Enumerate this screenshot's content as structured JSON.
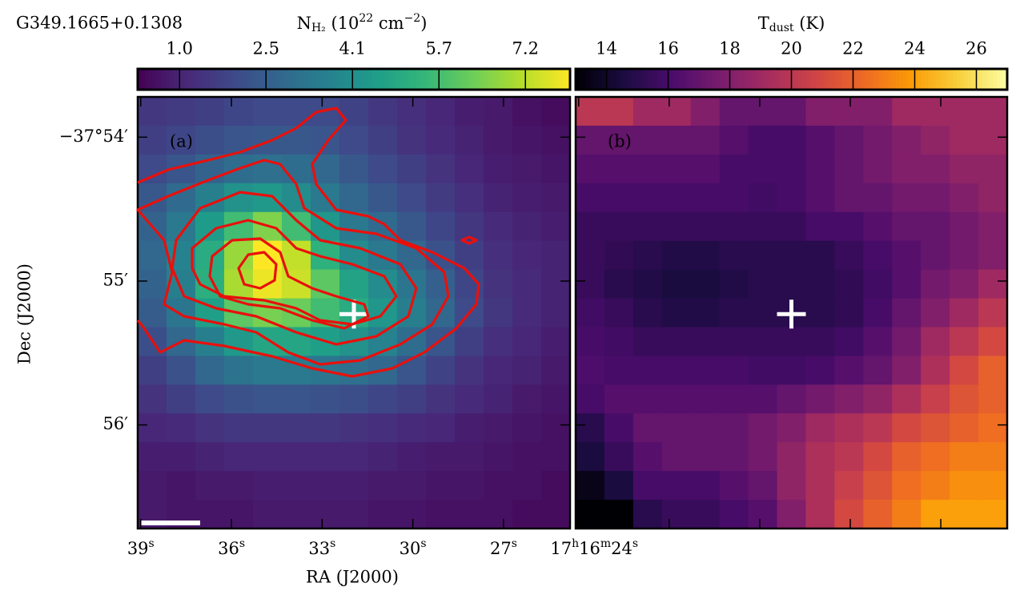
{
  "chart_data": [
    {
      "type": "heatmap",
      "title": "G349.1665+0.1308",
      "label": "(a)",
      "cmap": "viridis",
      "colorbar": {
        "label": [
          {
            "t": "N"
          },
          {
            "t": "H₂",
            "sub": true
          },
          {
            "t": " (10"
          },
          {
            "t": "22",
            "sup": true
          },
          {
            "t": " cm"
          },
          {
            "t": "−2",
            "sup": true
          },
          {
            "t": ")"
          }
        ],
        "clim": [
          0.25,
          8.0
        ],
        "ticks": [
          {
            "value": 1.0,
            "label": "1.0"
          },
          {
            "value": 2.55,
            "label": "2.5"
          },
          {
            "value": 4.1,
            "label": "4.1"
          },
          {
            "value": 5.65,
            "label": "5.7"
          },
          {
            "value": 7.2,
            "label": "7.2"
          }
        ]
      },
      "xlabel": "RA (J2000)",
      "ylabel": "Dec (J2000)",
      "xlim": [
        39.1,
        24.8
      ],
      "ylim": [
        53.72,
        56.72
      ],
      "xticks": [
        {
          "value": 39,
          "label": [
            {
              "t": "39"
            },
            {
              "t": "s",
              "sup": true
            }
          ]
        },
        {
          "value": 36,
          "label": [
            {
              "t": "36"
            },
            {
              "t": "s",
              "sup": true
            }
          ]
        },
        {
          "value": 33,
          "label": [
            {
              "t": "33"
            },
            {
              "t": "s",
              "sup": true
            }
          ]
        },
        {
          "value": 30,
          "label": [
            {
              "t": "30"
            },
            {
              "t": "s",
              "sup": true
            }
          ]
        },
        {
          "value": 27,
          "label": [
            {
              "t": "27"
            },
            {
              "t": "s",
              "sup": true
            }
          ]
        },
        {
          "value": 24,
          "label": [
            {
              "t": "17"
            },
            {
              "t": "h",
              "sup": true
            },
            {
              "t": "16"
            },
            {
              "t": "m",
              "sup": true
            },
            {
              "t": "24"
            },
            {
              "t": "s",
              "sup": true
            }
          ]
        }
      ],
      "yticks": [
        {
          "value": 54,
          "label": "−37°54′"
        },
        {
          "value": 55,
          "label": "55′"
        },
        {
          "value": 56,
          "label": "56′"
        }
      ],
      "cross": {
        "x": 31.95,
        "y": 55.23
      },
      "z": [
        [
          1.5,
          1.6,
          1.7,
          1.9,
          2.0,
          2.0,
          2.0,
          1.8,
          1.5,
          1.3,
          1.1,
          0.9,
          0.8,
          0.6,
          0.5
        ],
        [
          1.7,
          1.9,
          2.1,
          2.3,
          2.4,
          2.4,
          2.3,
          2.0,
          1.7,
          1.4,
          1.2,
          1.0,
          0.8,
          0.7,
          0.6
        ],
        [
          2.0,
          2.3,
          2.7,
          3.0,
          3.1,
          3.0,
          2.8,
          2.4,
          2.0,
          1.7,
          1.4,
          1.1,
          0.9,
          0.8,
          0.7
        ],
        [
          2.4,
          2.9,
          3.6,
          4.2,
          4.4,
          4.0,
          3.4,
          2.8,
          2.4,
          2.0,
          1.6,
          1.3,
          1.0,
          0.9,
          0.8
        ],
        [
          2.7,
          3.4,
          4.5,
          5.6,
          6.5,
          5.6,
          4.3,
          3.4,
          2.9,
          2.4,
          1.9,
          1.5,
          1.2,
          1.0,
          0.9
        ],
        [
          2.8,
          3.7,
          5.0,
          6.8,
          8.0,
          7.3,
          5.2,
          4.0,
          3.4,
          2.8,
          2.2,
          1.7,
          1.3,
          1.1,
          1.0
        ],
        [
          2.7,
          3.6,
          5.1,
          7.0,
          7.8,
          7.4,
          6.0,
          4.7,
          4.0,
          3.3,
          2.6,
          1.9,
          1.4,
          1.2,
          1.0
        ],
        [
          2.5,
          3.3,
          4.6,
          6.0,
          6.4,
          6.2,
          5.6,
          5.0,
          4.3,
          3.6,
          2.8,
          2.0,
          1.5,
          1.2,
          1.0
        ],
        [
          2.1,
          2.8,
          3.6,
          4.4,
          4.8,
          4.8,
          4.6,
          4.2,
          3.7,
          3.0,
          2.3,
          1.7,
          1.3,
          1.1,
          0.9
        ],
        [
          1.7,
          2.2,
          2.8,
          3.2,
          3.4,
          3.4,
          3.3,
          3.1,
          2.8,
          2.3,
          1.8,
          1.4,
          1.1,
          1.0,
          0.8
        ],
        [
          1.4,
          1.7,
          2.0,
          2.2,
          2.3,
          2.3,
          2.2,
          2.1,
          1.9,
          1.7,
          1.4,
          1.2,
          1.0,
          0.8,
          0.7
        ],
        [
          1.1,
          1.2,
          1.4,
          1.5,
          1.5,
          1.5,
          1.5,
          1.4,
          1.3,
          1.2,
          1.1,
          0.9,
          0.8,
          0.7,
          0.6
        ],
        [
          0.9,
          0.9,
          1.0,
          1.1,
          1.1,
          1.1,
          1.1,
          1.1,
          1.0,
          0.9,
          0.8,
          0.8,
          0.7,
          0.6,
          0.6
        ],
        [
          0.8,
          0.7,
          0.8,
          0.8,
          0.9,
          0.9,
          0.9,
          0.9,
          0.8,
          0.8,
          0.7,
          0.7,
          0.6,
          0.6,
          0.5
        ],
        [
          0.8,
          0.7,
          0.7,
          0.7,
          0.8,
          0.8,
          0.8,
          0.8,
          0.7,
          0.7,
          0.6,
          0.6,
          0.6,
          0.5,
          0.5
        ]
      ]
    },
    {
      "type": "heatmap",
      "label": "(b)",
      "cmap": "inferno",
      "colorbar": {
        "label": [
          {
            "t": "T"
          },
          {
            "t": "dust",
            "sub": true
          },
          {
            "t": " (K)"
          }
        ],
        "clim": [
          13,
          27
        ],
        "ticks": [
          14,
          16,
          18,
          20,
          22,
          24,
          26
        ]
      },
      "cross": {
        "x": 31.95,
        "y": 55.23
      },
      "z": [
        [
          20,
          20,
          19,
          19,
          18,
          17,
          17,
          17,
          18,
          18,
          18,
          19,
          19,
          19,
          19
        ],
        [
          17,
          17,
          17,
          17,
          17,
          16.5,
          16,
          16,
          16.5,
          17,
          17.5,
          18,
          18.5,
          19,
          19
        ],
        [
          16.5,
          16.5,
          16.5,
          16.5,
          16.5,
          16,
          16,
          16,
          16.5,
          17,
          17.5,
          18,
          18,
          18.5,
          18.5
        ],
        [
          16,
          16,
          16,
          16,
          16,
          16,
          15.8,
          16,
          16.5,
          17,
          17,
          17.5,
          17.5,
          18,
          18.5
        ],
        [
          15.5,
          15.5,
          15.5,
          15.5,
          15.5,
          15.5,
          15.5,
          15.5,
          16,
          16,
          16.5,
          17,
          17,
          17.5,
          18
        ],
        [
          15.5,
          15.3,
          15,
          14.8,
          14.8,
          15,
          15,
          15,
          15,
          15.5,
          16,
          16.5,
          17,
          17.5,
          18
        ],
        [
          15.5,
          15,
          14.8,
          14.5,
          14.5,
          14.8,
          15,
          15,
          15,
          15.3,
          15.8,
          16.5,
          17.5,
          18,
          19
        ],
        [
          15.8,
          15.5,
          15,
          14.8,
          14.8,
          15,
          15,
          15,
          15,
          15.3,
          16,
          17,
          18,
          19,
          20
        ],
        [
          16,
          15.8,
          15.5,
          15.5,
          15.5,
          15.5,
          15.5,
          15.5,
          15.5,
          15.8,
          16.5,
          17.5,
          19,
          20,
          21
        ],
        [
          16.2,
          16,
          16,
          16,
          16,
          16,
          15.8,
          15.8,
          16,
          16.5,
          17,
          18,
          19.5,
          21,
          22
        ],
        [
          16,
          16.5,
          16.5,
          16.5,
          16.5,
          16.5,
          16.5,
          17,
          17.5,
          18,
          18.5,
          19.5,
          20.5,
          21.5,
          22
        ],
        [
          15,
          16,
          17,
          17,
          17,
          17,
          17.5,
          18,
          19,
          19.5,
          20,
          21,
          21.5,
          22,
          22.5
        ],
        [
          14.5,
          15.5,
          16.5,
          17,
          17,
          17,
          17.5,
          18.5,
          19.5,
          20,
          21,
          22,
          22.5,
          23,
          23
        ],
        [
          13.5,
          14.5,
          16,
          16,
          16,
          16.5,
          17,
          18.5,
          19.5,
          20.5,
          21.5,
          22.5,
          23,
          23.5,
          23.5
        ],
        [
          13,
          13,
          15,
          15.5,
          15.5,
          16,
          16.5,
          18,
          19.5,
          21,
          22,
          23,
          24,
          24,
          24
        ]
      ]
    }
  ]
}
